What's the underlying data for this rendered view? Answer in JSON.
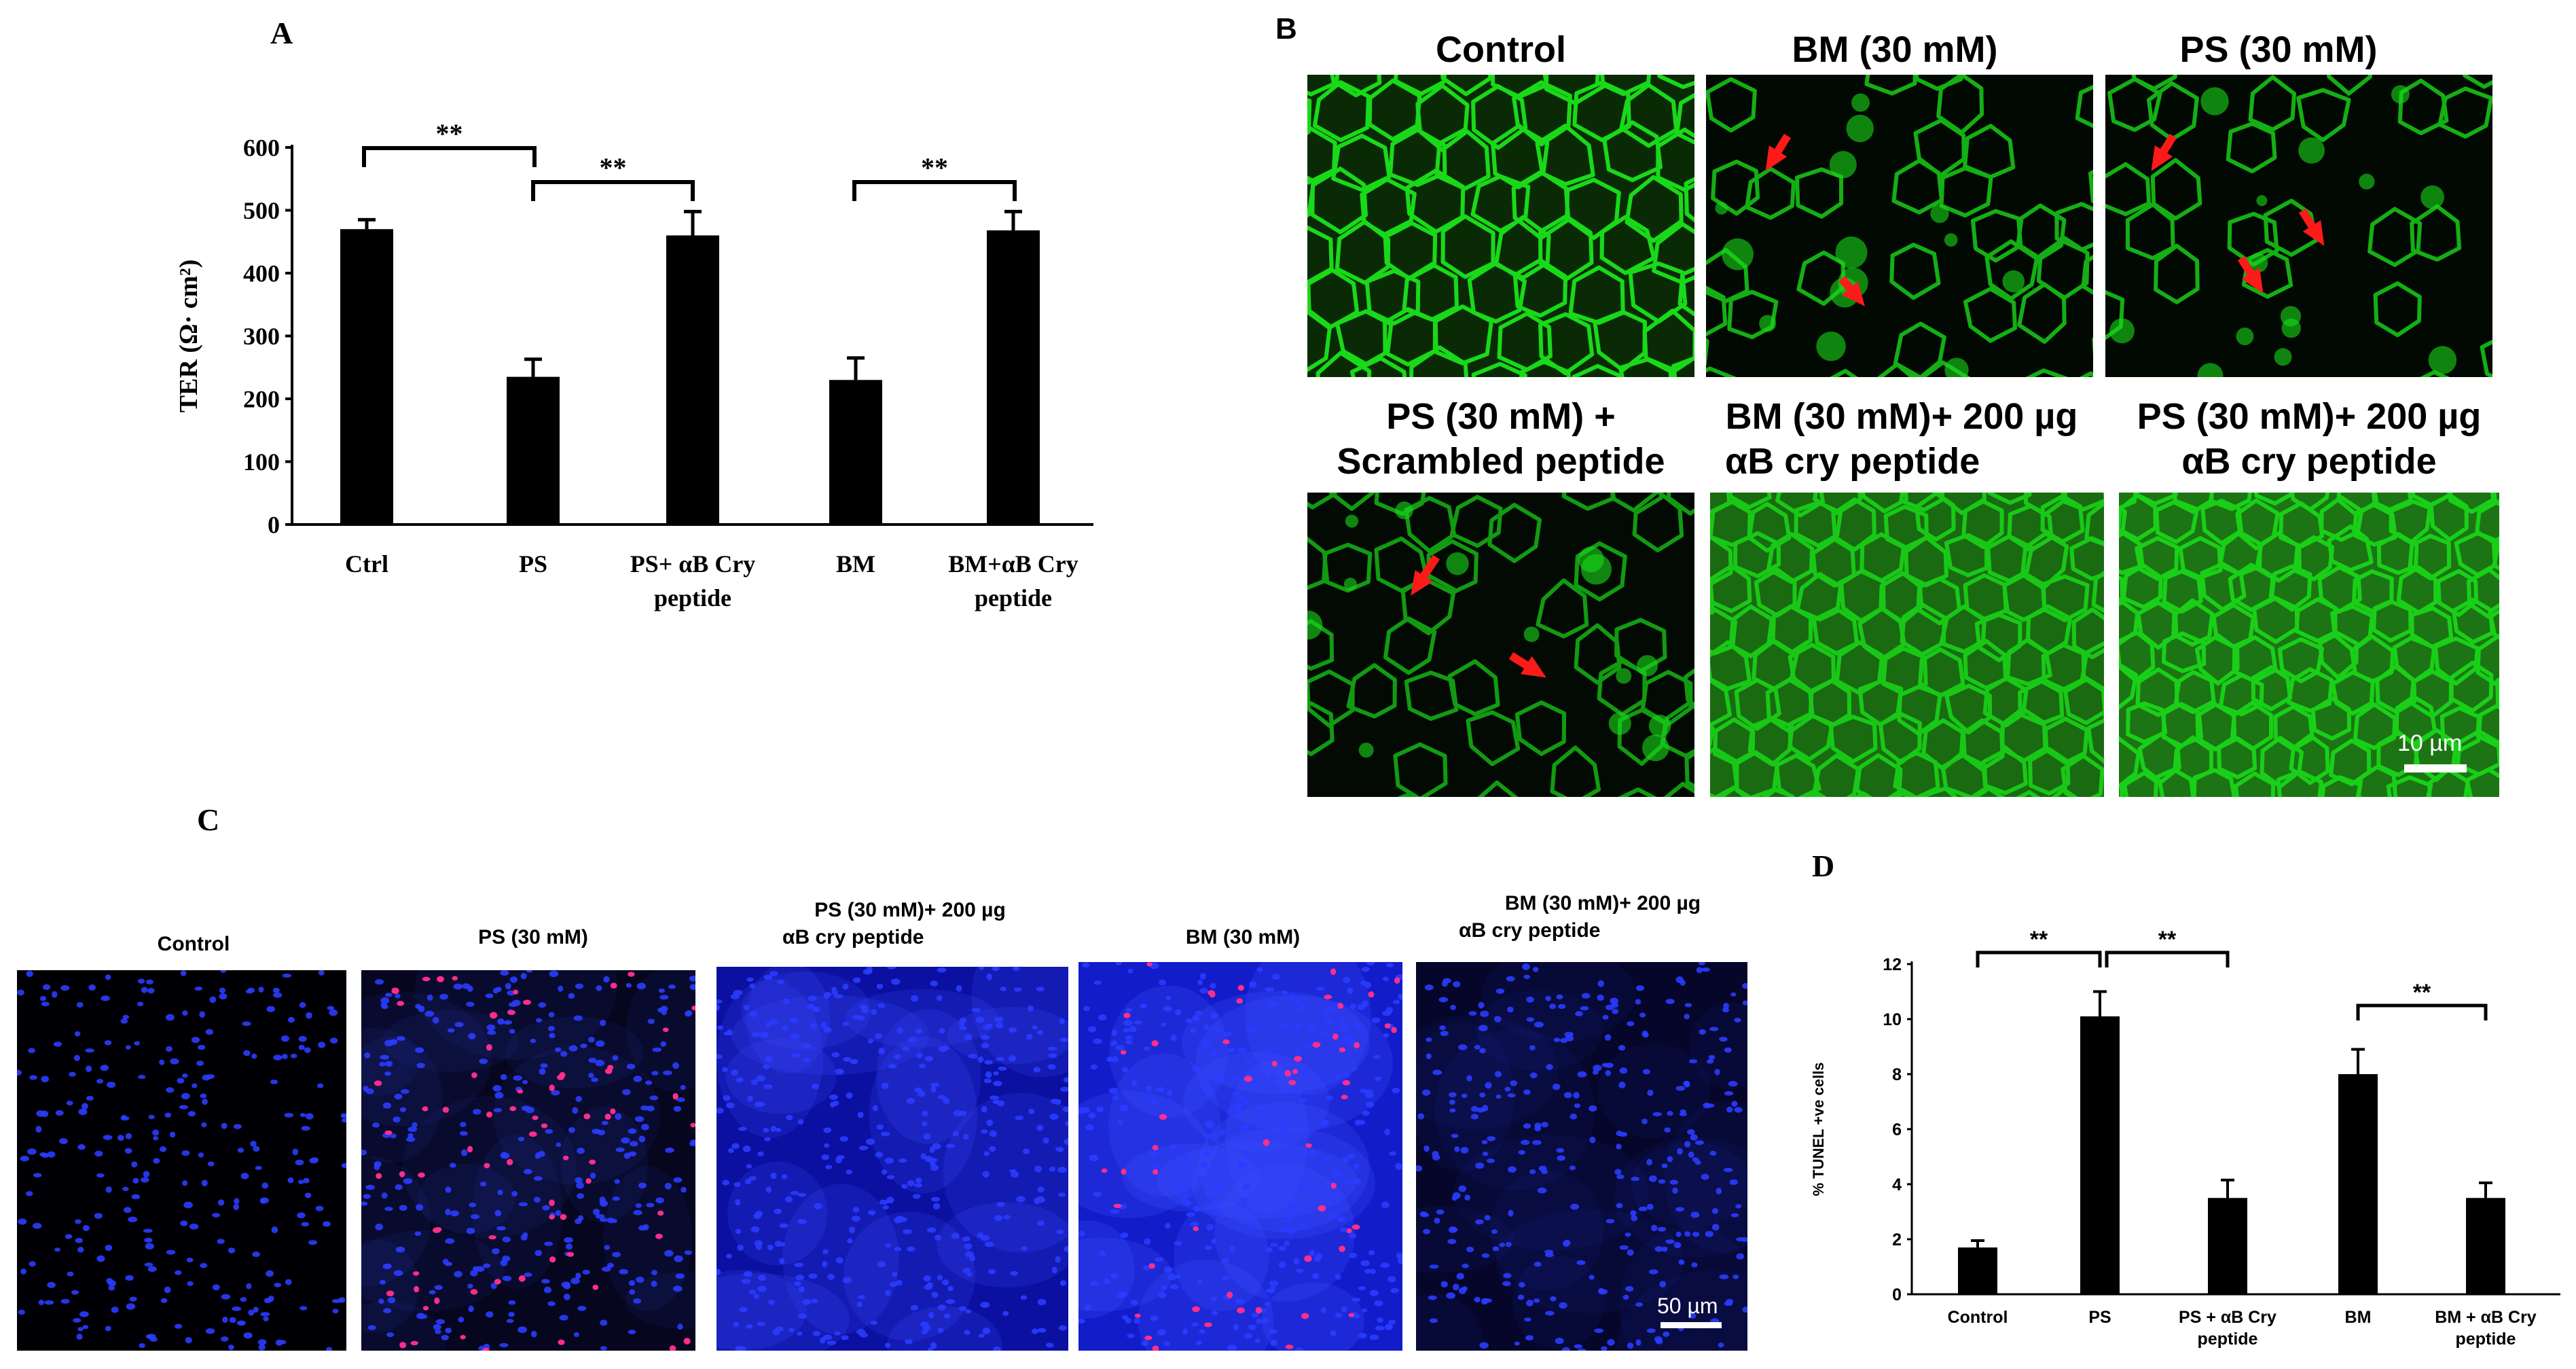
{
  "panels": {
    "a_letter": "A",
    "b_letter": "B",
    "c_letter": "C",
    "d_letter": "D"
  },
  "panel_b": {
    "titles": [
      {
        "line1": "Control",
        "line2": ""
      },
      {
        "line1": "BM (30 mM)",
        "line2": ""
      },
      {
        "line1": "PS (30 mM)",
        "line2": ""
      },
      {
        "line1": "PS (30 mM) +",
        "line2": "Scrambled peptide"
      },
      {
        "line1": "BM (30 mM)+ 200 µg",
        "line2": "αB cry peptide"
      },
      {
        "line1": "PS (30 mM)+ 200 µg",
        "line2": "αB cry peptide"
      }
    ],
    "scale_label": "10 µm",
    "stain_color": "#19d919"
  },
  "panel_c": {
    "titles": [
      {
        "line1": "Control",
        "line2": ""
      },
      {
        "line1": "PS (30 mM)",
        "line2": ""
      },
      {
        "line1": "PS (30 mM)+ 200 µg",
        "line2": "αB cry peptide"
      },
      {
        "line1": "BM (30 mM)",
        "line2": ""
      },
      {
        "line1": "BM (30 mM)+ 200 µg",
        "line2": "αB cry peptide"
      }
    ],
    "scale_label": "50 µm",
    "nuclei_color": "#2a3cff",
    "tunel_color": "#ff2d8a"
  },
  "chart_data": [
    {
      "type": "bar",
      "panel": "A",
      "categories": [
        "Ctrl",
        "PS",
        "PS+ αB Cry peptide",
        "BM",
        "BM+αB Cry peptide"
      ],
      "category_lines": [
        [
          "Ctrl"
        ],
        [
          "PS"
        ],
        [
          "PS+ αB Cry",
          "peptide"
        ],
        [
          "BM"
        ],
        [
          "BM+αB Cry",
          "peptide"
        ]
      ],
      "values": [
        470,
        235,
        460,
        230,
        468
      ],
      "errors": [
        15,
        28,
        38,
        35,
        30
      ],
      "ylabel": "TER (Ω· cm²)",
      "ylim": [
        0,
        600
      ],
      "yticks": [
        0,
        100,
        200,
        300,
        400,
        500,
        600
      ],
      "significance": [
        {
          "from": 0,
          "to": 1,
          "label": "**"
        },
        {
          "from": 1,
          "to": 2,
          "label": "**"
        },
        {
          "from": 3,
          "to": 4,
          "label": "**"
        }
      ]
    },
    {
      "type": "bar",
      "panel": "D",
      "categories": [
        "Control",
        "PS",
        "PS + αB Cry peptide",
        "BM",
        "BM + αB Cry peptide"
      ],
      "category_lines": [
        [
          "Control"
        ],
        [
          "PS"
        ],
        [
          "PS + αB Cry",
          "peptide"
        ],
        [
          "BM"
        ],
        [
          "BM + αB Cry",
          "peptide"
        ]
      ],
      "values": [
        1.7,
        10.1,
        3.5,
        8.0,
        3.5
      ],
      "errors": [
        0.25,
        0.9,
        0.65,
        0.9,
        0.55
      ],
      "ylabel": "% TUNEL +ve cells",
      "ylim": [
        0,
        12
      ],
      "yticks": [
        0,
        2,
        4,
        6,
        8,
        10,
        12
      ],
      "significance": [
        {
          "from": 0,
          "to": 1,
          "label": "**"
        },
        {
          "from": 1,
          "to": 2,
          "label": "**"
        },
        {
          "from": 3,
          "to": 4,
          "label": "**"
        }
      ]
    }
  ]
}
